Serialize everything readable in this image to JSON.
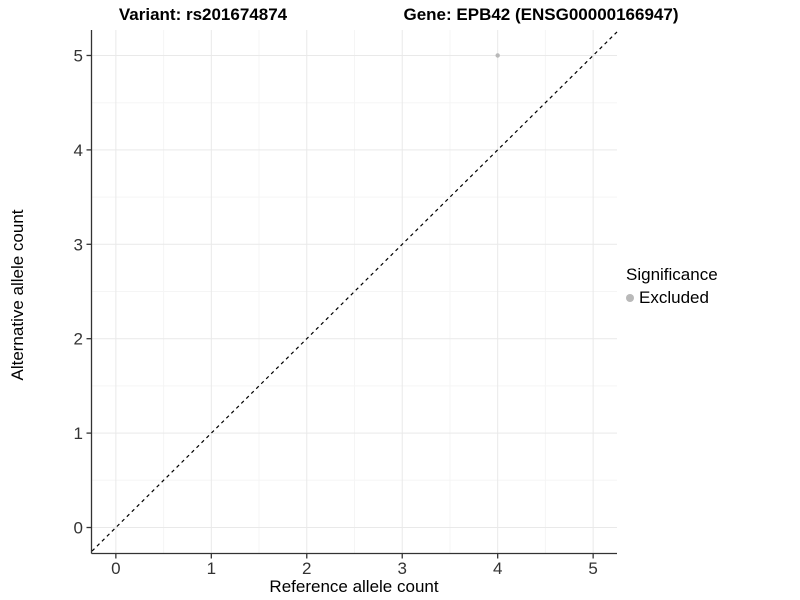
{
  "titles": {
    "left": "Variant: rs201674874",
    "right": "Gene: EPB42 (ENSG00000166947)"
  },
  "legend": {
    "title": "Significance",
    "items": [
      {
        "label": "Excluded",
        "color": "#b9b9b9"
      }
    ]
  },
  "chart_data": {
    "type": "scatter",
    "title": "Variant: rs201674874 / Gene: EPB42 (ENSG00000166947)",
    "xlabel": "Reference allele count",
    "ylabel": "Alternative allele count",
    "series": [
      {
        "name": "Excluded",
        "color": "#b9b9b9",
        "points": [
          {
            "x": 4,
            "y": 5
          }
        ]
      }
    ],
    "reference_line": {
      "type": "identity",
      "slope": 1,
      "intercept": 0,
      "style": "dashed",
      "color": "#000000",
      "description": "y = x dashed diagonal"
    },
    "xticks": [
      0,
      1,
      2,
      3,
      4,
      5
    ],
    "yticks": [
      0,
      1,
      2,
      3,
      4,
      5
    ],
    "xlim": [
      -0.25,
      5.25
    ],
    "ylim": [
      -0.27,
      5.27
    ],
    "grid": {
      "major": true,
      "minor": true,
      "minor_step": 0.5,
      "major_color": "#e9e9e9",
      "minor_color": "#f5f5f5"
    },
    "legend_position": "right",
    "axis_color": "#333333",
    "tick_label_color": "#333333",
    "point_radius_px": 2.2,
    "legend_title": "Significance"
  }
}
